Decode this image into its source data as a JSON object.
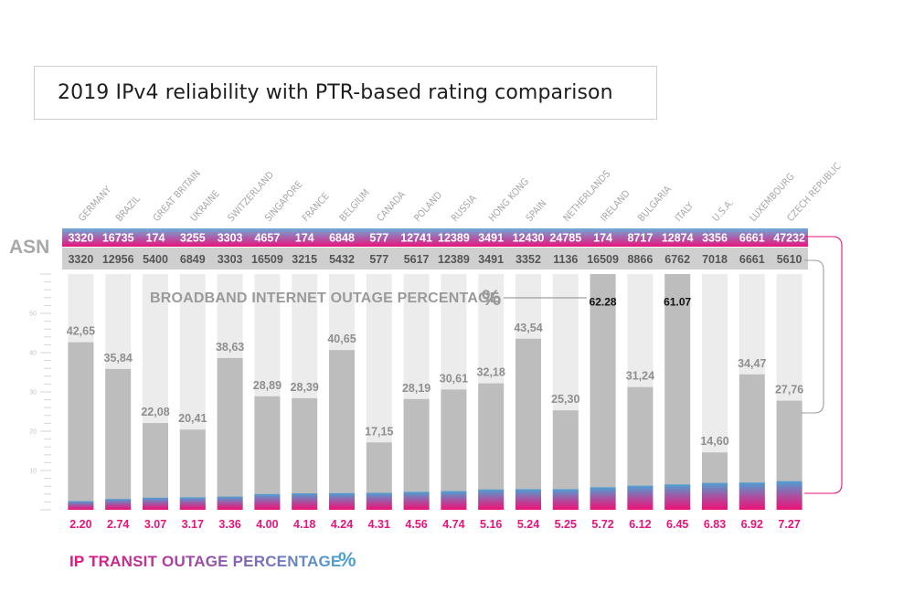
{
  "title": "2019 IPv4 reliability with PTR-based rating comparison",
  "asn_label": "ASN",
  "broadband_label": "BROADBAND INTERNET OUTAGE PERCENTAGE",
  "broadband_symbol": "%",
  "ip_label": "IP TRANSIT OUTAGE PERCENTAGE",
  "ip_symbol": "%",
  "colors": {
    "grey_bar": "#bdbdbd",
    "column_bg": "#ececec",
    "pink": "#e8137d",
    "blue": "#4f9fd2",
    "asn_bottom_band": "#cfcfcf",
    "label_grey": "#9a9a9a"
  },
  "chart_data": {
    "type": "bar",
    "ylim": [
      0,
      60
    ],
    "y_ticks": [
      "10",
      "20",
      "30",
      "40",
      "50"
    ],
    "categories": [
      "GERMANY",
      "BRAZIL",
      "GREAT BRITAIN",
      "UKRAINE",
      "SWITZERLAND",
      "SINGAPORE",
      "FRANCE",
      "BELGIUM",
      "CANADA",
      "POLAND",
      "RUSSIA",
      "HONG KONG",
      "SPAIN",
      "NETHERLANDS",
      "IRELAND",
      "BULGARIA",
      "ITALY",
      "U.S.A.",
      "LUXEMBOURG",
      "CZECH REPUBLIC"
    ],
    "asn_top": [
      "3320",
      "16735",
      "174",
      "3255",
      "3303",
      "4657",
      "174",
      "6848",
      "577",
      "12741",
      "12389",
      "3491",
      "12430",
      "24785",
      "174",
      "8717",
      "12874",
      "3356",
      "6661",
      "47232"
    ],
    "asn_bottom": [
      "3320",
      "12956",
      "5400",
      "6849",
      "3303",
      "16509",
      "3215",
      "5432",
      "577",
      "5617",
      "12389",
      "3491",
      "3352",
      "1136",
      "16509",
      "8866",
      "6762",
      "7018",
      "6661",
      "5610"
    ],
    "series": [
      {
        "name": "BROADBAND INTERNET OUTAGE PERCENTAGE",
        "values": [
          42.65,
          35.84,
          22.08,
          20.41,
          38.63,
          28.89,
          28.39,
          40.65,
          17.15,
          28.19,
          30.61,
          32.18,
          43.54,
          25.3,
          62.28,
          31.24,
          61.07,
          14.6,
          34.47,
          27.76
        ],
        "labels": [
          "42,65",
          "35,84",
          "22,08",
          "20,41",
          "38,63",
          "28,89",
          "28,39",
          "40,65",
          "17,15",
          "28,19",
          "30,61",
          "32,18",
          "43,54",
          "25,30",
          "62.28",
          "31,24",
          "61.07",
          "14,60",
          "34,47",
          "27,76"
        ]
      },
      {
        "name": "IP TRANSIT OUTAGE PERCENTAGE",
        "values": [
          2.2,
          2.74,
          3.07,
          3.17,
          3.36,
          4.0,
          4.18,
          4.24,
          4.31,
          4.56,
          4.74,
          5.16,
          5.24,
          5.25,
          5.72,
          6.12,
          6.45,
          6.83,
          6.92,
          7.27
        ],
        "labels": [
          "2.20",
          "2.74",
          "3.07",
          "3.17",
          "3.36",
          "4.00",
          "4.18",
          "4.24",
          "4.31",
          "4.56",
          "4.74",
          "5.16",
          "5.24",
          "5.25",
          "5.72",
          "6.12",
          "6.45",
          "6.83",
          "6.92",
          "7.27"
        ]
      }
    ]
  }
}
